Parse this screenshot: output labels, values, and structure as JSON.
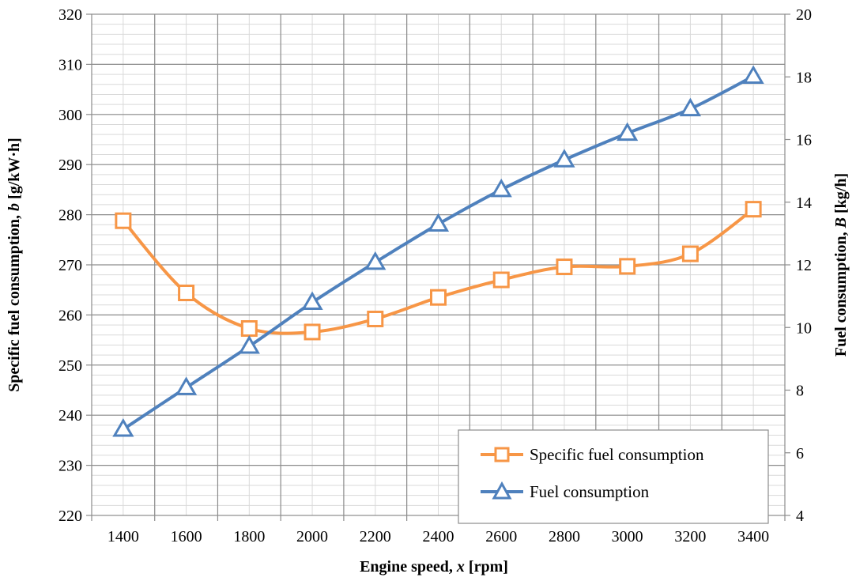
{
  "chart_data": {
    "type": "line",
    "title": "",
    "xlabel": {
      "prefix": "Engine speed, ",
      "var": "x",
      "suffix": " [rpm]"
    },
    "ylabel_left": {
      "prefix": "Specific fuel consumption, ",
      "var": "b",
      "suffix": " [g/kW·h]"
    },
    "ylabel_right": {
      "prefix": "Fuel consumption, ",
      "var": "B",
      "suffix": " [kg/h]"
    },
    "x": [
      1400,
      1600,
      1800,
      2000,
      2200,
      2400,
      2600,
      2800,
      3000,
      3200,
      3400
    ],
    "x_ticks": [
      "1400",
      "1600",
      "1800",
      "2000",
      "2200",
      "2400",
      "2600",
      "2800",
      "3000",
      "3200",
      "3400"
    ],
    "ylim_left": [
      220,
      320
    ],
    "yticks_left": [
      "220",
      "230",
      "240",
      "250",
      "260",
      "270",
      "280",
      "290",
      "300",
      "310",
      "320"
    ],
    "ylim_right": [
      4,
      20
    ],
    "yticks_right": [
      "4",
      "6",
      "8",
      "10",
      "12",
      "14",
      "16",
      "18",
      "20"
    ],
    "grid": true,
    "legend_position": "bottom-right",
    "series": [
      {
        "name": "Specific fuel consumption",
        "axis": "left",
        "marker": "square",
        "color": "#F79646",
        "values": [
          278.8,
          264.4,
          257.3,
          256.6,
          259.2,
          263.5,
          267.0,
          269.6,
          269.7,
          272.2,
          281.1
        ]
      },
      {
        "name": "Fuel consumption",
        "axis": "right",
        "marker": "triangle",
        "color": "#4F81BD",
        "values": [
          6.75,
          8.08,
          9.4,
          10.8,
          12.08,
          13.3,
          14.4,
          15.35,
          16.2,
          16.98,
          18.02
        ]
      }
    ]
  }
}
